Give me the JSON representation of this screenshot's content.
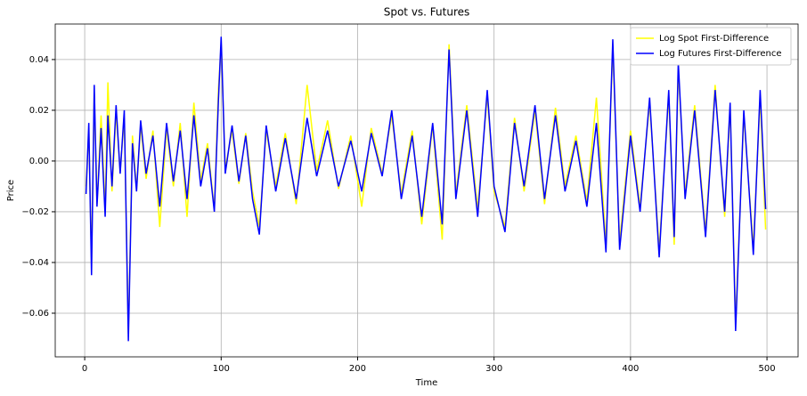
{
  "chart_data": {
    "type": "line",
    "title": "Spot vs. Futures",
    "x_label": "Time",
    "y_label": "Price",
    "x": [
      1,
      3,
      5,
      7,
      9,
      12,
      15,
      17,
      20,
      23,
      26,
      29,
      32,
      35,
      38,
      41,
      45,
      50,
      55,
      60,
      65,
      70,
      75,
      80,
      85,
      90,
      95,
      98,
      100,
      103,
      108,
      113,
      118,
      123,
      128,
      133,
      140,
      147,
      155,
      163,
      170,
      178,
      186,
      195,
      203,
      210,
      218,
      225,
      232,
      240,
      247,
      255,
      262,
      267,
      272,
      280,
      288,
      295,
      300,
      308,
      315,
      322,
      330,
      337,
      345,
      352,
      360,
      368,
      375,
      382,
      387,
      392,
      400,
      407,
      414,
      421,
      428,
      432,
      435,
      440,
      447,
      455,
      462,
      469,
      473,
      477,
      483,
      490,
      495,
      499
    ],
    "series": [
      {
        "name": "Log Spot First-Difference",
        "color": "#ffff00",
        "values": [
          -0.01,
          0.012,
          -0.04,
          0.027,
          -0.017,
          0.018,
          -0.019,
          0.031,
          -0.012,
          0.019,
          -0.004,
          0.017,
          -0.068,
          0.01,
          -0.011,
          0.014,
          -0.007,
          0.012,
          -0.026,
          0.013,
          -0.01,
          0.015,
          -0.022,
          0.023,
          -0.008,
          0.007,
          -0.019,
          0.028,
          0.046,
          -0.003,
          0.012,
          -0.009,
          0.011,
          -0.012,
          -0.026,
          0.012,
          -0.01,
          0.011,
          -0.017,
          0.03,
          -0.004,
          0.016,
          -0.011,
          0.01,
          -0.018,
          0.013,
          -0.005,
          0.018,
          -0.013,
          0.012,
          -0.025,
          0.014,
          -0.031,
          0.046,
          -0.013,
          0.022,
          -0.019,
          0.026,
          -0.012,
          -0.026,
          0.017,
          -0.012,
          0.02,
          -0.017,
          0.021,
          -0.01,
          0.01,
          -0.016,
          0.025,
          -0.033,
          0.045,
          -0.032,
          0.012,
          -0.018,
          0.023,
          -0.035,
          0.026,
          -0.033,
          0.036,
          -0.013,
          0.022,
          -0.028,
          0.03,
          -0.022,
          0.021,
          -0.064,
          0.018,
          -0.034,
          0.025,
          -0.027
        ]
      },
      {
        "name": "Log Futures First-Difference",
        "color": "#0000ff",
        "values": [
          -0.013,
          0.015,
          -0.045,
          0.03,
          -0.018,
          0.013,
          -0.022,
          0.018,
          -0.01,
          0.022,
          -0.005,
          0.02,
          -0.071,
          0.007,
          -0.012,
          0.016,
          -0.005,
          0.01,
          -0.018,
          0.015,
          -0.008,
          0.012,
          -0.015,
          0.018,
          -0.01,
          0.005,
          -0.02,
          0.024,
          0.049,
          -0.005,
          0.014,
          -0.008,
          0.01,
          -0.015,
          -0.029,
          0.014,
          -0.012,
          0.009,
          -0.015,
          0.017,
          -0.006,
          0.012,
          -0.01,
          0.008,
          -0.012,
          0.011,
          -0.006,
          0.02,
          -0.015,
          0.01,
          -0.022,
          0.015,
          -0.025,
          0.044,
          -0.015,
          0.02,
          -0.022,
          0.028,
          -0.01,
          -0.028,
          0.015,
          -0.01,
          0.022,
          -0.015,
          0.018,
          -0.012,
          0.008,
          -0.018,
          0.015,
          -0.036,
          0.048,
          -0.035,
          0.01,
          -0.02,
          0.025,
          -0.038,
          0.028,
          -0.03,
          0.039,
          -0.015,
          0.02,
          -0.03,
          0.028,
          -0.02,
          0.023,
          -0.067,
          0.02,
          -0.037,
          0.028,
          -0.019
        ]
      }
    ],
    "xlim": [
      -21.6,
      522.8
    ],
    "ylim": [
      -0.0772,
      0.054
    ],
    "xticks": [
      0,
      100,
      200,
      300,
      400,
      500
    ],
    "yticks": [
      {
        "value": -0.06,
        "label": "−0.06"
      },
      {
        "value": -0.04,
        "label": "−0.04"
      },
      {
        "value": -0.02,
        "label": "−0.02"
      },
      {
        "value": 0,
        "label": "0.00"
      },
      0.02,
      0.04
    ],
    "grid": true,
    "legend": "upper right"
  }
}
